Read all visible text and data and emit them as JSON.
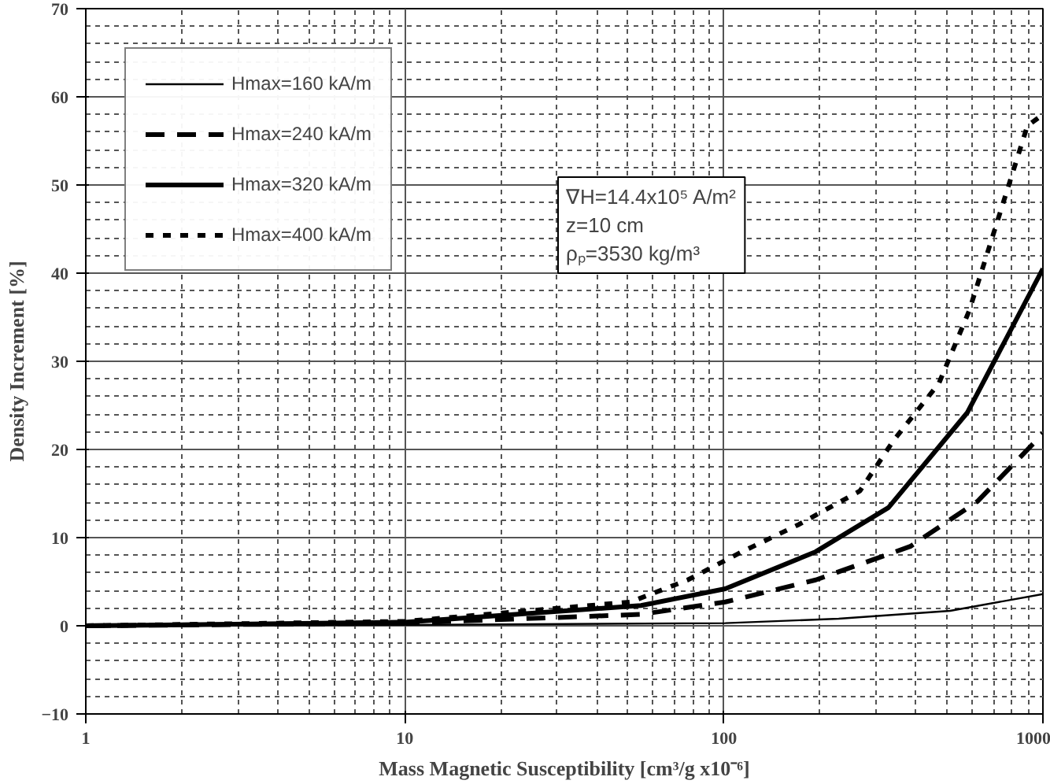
{
  "chart_data": {
    "type": "line",
    "xlabel": "Mass Magnetic Susceptibility [cm³/g x10⁻⁶]",
    "ylabel": "Density Increment [%]",
    "xlim": [
      1,
      1000
    ],
    "xticks": [
      1,
      10,
      100,
      1000
    ],
    "ylim": [
      -10,
      70
    ],
    "yticks": [
      -10,
      0,
      10,
      20,
      30,
      40,
      50,
      60,
      70
    ],
    "log": "x",
    "grid": true,
    "legend": "top left",
    "annotations": [
      "∇H=14.4x10⁵ A/m²",
      "z=10 cm",
      "ρₚ=3530 kg/m³"
    ],
    "series": [
      {
        "name": "Hmax=160 kA/m",
        "color": "#000000",
        "line_style": "solid",
        "x": [
          1,
          10,
          101,
          229,
          512,
          1000
        ],
        "values": [
          0,
          0.1,
          0.3,
          0.8,
          1.7,
          3.6
        ]
      },
      {
        "name": "Hmax=240 kA/m",
        "color": "#000000",
        "line_style": "dashed",
        "x": [
          1,
          10,
          55,
          101,
          194,
          384,
          623,
          1000
        ],
        "values": [
          0,
          0.3,
          1.3,
          2.7,
          5.2,
          9,
          14.1,
          21.8
        ]
      },
      {
        "name": "Hmax=320 kA/m",
        "color": "#000000",
        "line_style": "solid",
        "x": [
          1,
          10,
          55,
          101,
          194,
          328,
          580,
          1000
        ],
        "values": [
          0,
          0.4,
          2.3,
          4.2,
          8.4,
          13.4,
          24.2,
          40.5
        ]
      },
      {
        "name": "Hmax=400 kA/m",
        "color": "#000000",
        "line_style": "dotted",
        "x": [
          1,
          10,
          51,
          77,
          114,
          172,
          267,
          340,
          472,
          587,
          703,
          894,
          1000
        ],
        "values": [
          0,
          0.5,
          2.7,
          5.2,
          8.4,
          11.5,
          15.3,
          21,
          27.5,
          35.7,
          44.7,
          56.7,
          58
        ]
      }
    ]
  }
}
